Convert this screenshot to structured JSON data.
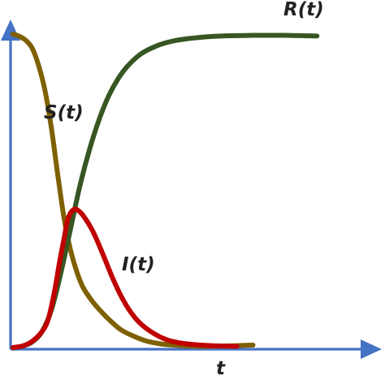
{
  "chart_data": {
    "type": "line",
    "title": "",
    "xlabel": "t",
    "ylabel": "",
    "xlim": [
      0,
      100
    ],
    "ylim": [
      0,
      100
    ],
    "grid": false,
    "legend": "none",
    "axis_color": "#4472c4",
    "series": [
      {
        "name": "S(t)",
        "label": "S(t)",
        "color": "#7f6000",
        "x": [
          0,
          2,
          4,
          6,
          8,
          10,
          12,
          14,
          16,
          18,
          20,
          22,
          25,
          28,
          31,
          34,
          38,
          42,
          46,
          50,
          55,
          60,
          65,
          70,
          75
        ],
        "y": [
          100,
          99.3,
          98,
          95.5,
          90,
          82,
          70,
          55,
          41,
          31,
          24,
          19,
          14.5,
          11,
          8,
          5.5,
          3.5,
          2,
          1.2,
          0.8,
          0.5,
          0.4,
          0.5,
          0.6,
          0.8
        ]
      },
      {
        "name": "I(t)",
        "label": "I(t)",
        "color": "#c00000",
        "x": [
          0,
          3,
          6,
          9,
          11,
          13,
          14.5,
          16,
          17,
          18,
          19,
          20,
          22,
          25,
          28,
          31,
          34,
          37,
          40,
          44,
          48,
          52,
          56,
          60,
          65,
          70
        ],
        "y": [
          0,
          0.5,
          2,
          5,
          9,
          18,
          27,
          35,
          40.5,
          43,
          44,
          44,
          42,
          37,
          30,
          22.5,
          16,
          11,
          7.5,
          4.5,
          2.5,
          1.5,
          1,
          0.7,
          0.5,
          0.4
        ]
      },
      {
        "name": "R(t)",
        "label": "R(t)",
        "color": "#375623",
        "x": [
          0,
          3,
          6,
          9,
          12,
          15,
          18,
          21,
          24,
          27,
          30,
          33,
          36,
          40,
          45,
          50,
          55,
          60,
          65,
          70,
          75,
          80,
          85,
          90,
          95
        ],
        "y": [
          0,
          0.5,
          1.8,
          5,
          12,
          24,
          38,
          52,
          63.5,
          73,
          80.5,
          86,
          90,
          93.7,
          96.3,
          97.8,
          98.6,
          99.1,
          99.4,
          99.5,
          99.6,
          99.6,
          99.6,
          99.5,
          99.4
        ]
      }
    ]
  }
}
